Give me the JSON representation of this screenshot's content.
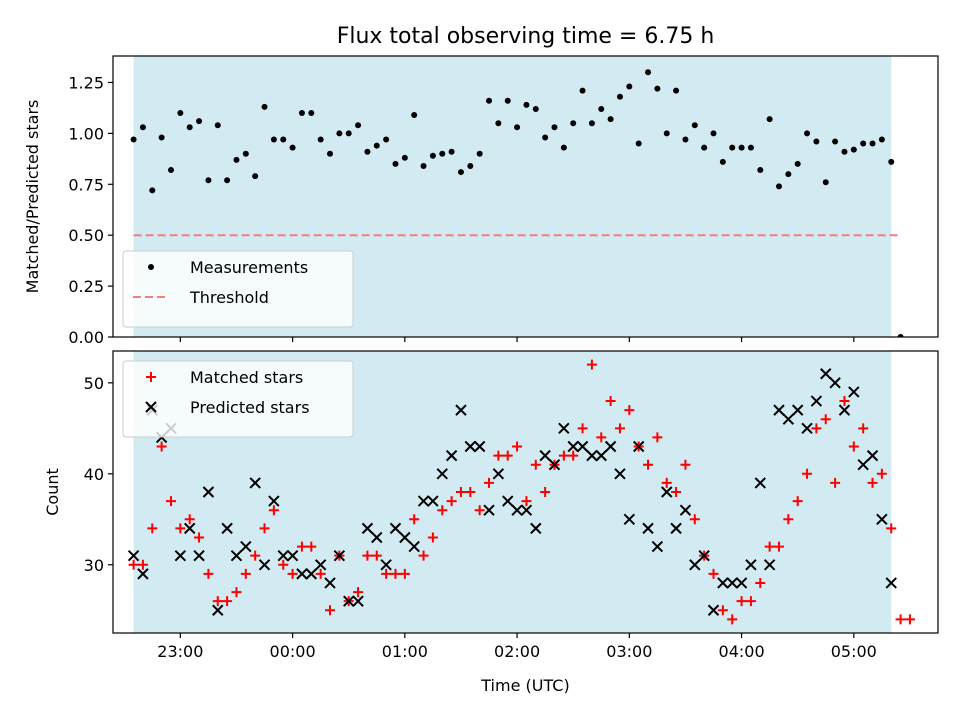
{
  "chart_data": [
    {
      "type": "scatter",
      "title": "Flux total observing time = 6.75 h",
      "ylabel": "Matched/Predicted stars",
      "xlabel": "",
      "xlim": [
        "22:24",
        "05:45"
      ],
      "ylim": [
        0,
        1.38
      ],
      "yticks": [
        "0.00",
        "0.25",
        "0.50",
        "0.75",
        "1.00",
        "1.25"
      ],
      "xticks": [
        "23:00",
        "00:00",
        "01:00",
        "02:00",
        "03:00",
        "04:00",
        "05:00"
      ],
      "x_tick_labels_visible": false,
      "shaded_span": {
        "start": "22:35",
        "end": "05:20",
        "color": "#add8e6"
      },
      "legend_location": "lower-left",
      "series": [
        {
          "name": "Measurements",
          "marker": "dot",
          "color": "#000000",
          "points": [
            [
              "22:35",
              0.97
            ],
            [
              "22:40",
              1.03
            ],
            [
              "22:45",
              0.72
            ],
            [
              "22:50",
              0.98
            ],
            [
              "22:55",
              0.82
            ],
            [
              "23:00",
              1.1
            ],
            [
              "23:05",
              1.03
            ],
            [
              "23:10",
              1.06
            ],
            [
              "23:15",
              0.77
            ],
            [
              "23:20",
              1.04
            ],
            [
              "23:25",
              0.77
            ],
            [
              "23:30",
              0.87
            ],
            [
              "23:35",
              0.9
            ],
            [
              "23:40",
              0.79
            ],
            [
              "23:45",
              1.13
            ],
            [
              "23:50",
              0.97
            ],
            [
              "23:55",
              0.97
            ],
            [
              "00:00",
              0.93
            ],
            [
              "00:05",
              1.1
            ],
            [
              "00:10",
              1.1
            ],
            [
              "00:15",
              0.97
            ],
            [
              "00:20",
              0.9
            ],
            [
              "00:25",
              1.0
            ],
            [
              "00:30",
              1.0
            ],
            [
              "00:35",
              1.04
            ],
            [
              "00:40",
              0.91
            ],
            [
              "00:45",
              0.94
            ],
            [
              "00:50",
              0.97
            ],
            [
              "00:55",
              0.85
            ],
            [
              "01:00",
              0.88
            ],
            [
              "01:05",
              1.09
            ],
            [
              "01:10",
              0.84
            ],
            [
              "01:15",
              0.89
            ],
            [
              "01:20",
              0.9
            ],
            [
              "01:25",
              0.91
            ],
            [
              "01:30",
              0.81
            ],
            [
              "01:35",
              0.84
            ],
            [
              "01:40",
              0.9
            ],
            [
              "01:45",
              1.16
            ],
            [
              "01:50",
              1.05
            ],
            [
              "01:55",
              1.16
            ],
            [
              "02:00",
              1.03
            ],
            [
              "02:05",
              1.14
            ],
            [
              "02:10",
              1.12
            ],
            [
              "02:15",
              0.98
            ],
            [
              "02:20",
              1.03
            ],
            [
              "02:25",
              0.93
            ],
            [
              "02:30",
              1.05
            ],
            [
              "02:35",
              1.21
            ],
            [
              "02:40",
              1.05
            ],
            [
              "02:45",
              1.12
            ],
            [
              "02:50",
              1.07
            ],
            [
              "02:55",
              1.18
            ],
            [
              "03:00",
              1.23
            ],
            [
              "03:05",
              0.95
            ],
            [
              "03:10",
              1.3
            ],
            [
              "03:15",
              1.22
            ],
            [
              "03:20",
              1.0
            ],
            [
              "03:25",
              1.21
            ],
            [
              "03:30",
              0.97
            ],
            [
              "03:35",
              1.04
            ],
            [
              "03:40",
              0.93
            ],
            [
              "03:45",
              1.0
            ],
            [
              "03:50",
              0.86
            ],
            [
              "03:55",
              0.93
            ],
            [
              "04:00",
              0.93
            ],
            [
              "04:05",
              0.93
            ],
            [
              "04:10",
              0.82
            ],
            [
              "04:15",
              1.07
            ],
            [
              "04:20",
              0.74
            ],
            [
              "04:25",
              0.8
            ],
            [
              "04:30",
              0.85
            ],
            [
              "04:35",
              1.0
            ],
            [
              "04:40",
              0.96
            ],
            [
              "04:45",
              0.76
            ],
            [
              "04:50",
              0.96
            ],
            [
              "04:55",
              0.91
            ],
            [
              "05:00",
              0.92
            ],
            [
              "05:05",
              0.95
            ],
            [
              "05:10",
              0.95
            ],
            [
              "05:15",
              0.97
            ],
            [
              "05:20",
              0.86
            ],
            [
              "05:25",
              0.0
            ]
          ]
        },
        {
          "name": "Threshold",
          "marker": "dashed-line",
          "color": "#f08080",
          "points": [
            [
              "22:35",
              0.5
            ],
            [
              "05:25",
              0.5
            ]
          ]
        }
      ]
    },
    {
      "type": "scatter",
      "title": "",
      "ylabel": "Count",
      "xlabel": "Time (UTC)",
      "xlim": [
        "22:24",
        "05:45"
      ],
      "ylim": [
        22.5,
        53.5
      ],
      "yticks": [
        "30",
        "40",
        "50"
      ],
      "xticks": [
        "23:00",
        "00:00",
        "01:00",
        "02:00",
        "03:00",
        "04:00",
        "05:00"
      ],
      "shaded_span": {
        "start": "22:35",
        "end": "05:20",
        "color": "#add8e6"
      },
      "legend_location": "upper-left",
      "series": [
        {
          "name": "Matched stars",
          "marker": "plus",
          "color": "#ff0000",
          "points": [
            [
              "22:35",
              30
            ],
            [
              "22:40",
              30
            ],
            [
              "22:45",
              34
            ],
            [
              "22:50",
              43
            ],
            [
              "22:55",
              37
            ],
            [
              "23:00",
              34
            ],
            [
              "23:05",
              35
            ],
            [
              "23:10",
              33
            ],
            [
              "23:15",
              29
            ],
            [
              "23:20",
              26
            ],
            [
              "23:25",
              26
            ],
            [
              "23:30",
              27
            ],
            [
              "23:35",
              29
            ],
            [
              "23:40",
              31
            ],
            [
              "23:45",
              34
            ],
            [
              "23:50",
              36
            ],
            [
              "23:55",
              30
            ],
            [
              "00:00",
              29
            ],
            [
              "00:05",
              32
            ],
            [
              "00:10",
              32
            ],
            [
              "00:15",
              29
            ],
            [
              "00:20",
              25
            ],
            [
              "00:25",
              31
            ],
            [
              "00:30",
              26
            ],
            [
              "00:35",
              27
            ],
            [
              "00:40",
              31
            ],
            [
              "00:45",
              31
            ],
            [
              "00:50",
              29
            ],
            [
              "00:55",
              29
            ],
            [
              "01:00",
              29
            ],
            [
              "01:05",
              35
            ],
            [
              "01:10",
              31
            ],
            [
              "01:15",
              33
            ],
            [
              "01:20",
              36
            ],
            [
              "01:25",
              37
            ],
            [
              "01:30",
              38
            ],
            [
              "01:35",
              38
            ],
            [
              "01:40",
              36
            ],
            [
              "01:45",
              39
            ],
            [
              "01:50",
              42
            ],
            [
              "01:55",
              42
            ],
            [
              "02:00",
              43
            ],
            [
              "02:05",
              37
            ],
            [
              "02:10",
              41
            ],
            [
              "02:15",
              38
            ],
            [
              "02:20",
              41
            ],
            [
              "02:25",
              42
            ],
            [
              "02:30",
              42
            ],
            [
              "02:35",
              45
            ],
            [
              "02:40",
              52
            ],
            [
              "02:45",
              44
            ],
            [
              "02:50",
              48
            ],
            [
              "02:55",
              45
            ],
            [
              "03:00",
              47
            ],
            [
              "03:05",
              43
            ],
            [
              "03:10",
              41
            ],
            [
              "03:15",
              44
            ],
            [
              "03:20",
              39
            ],
            [
              "03:25",
              38
            ],
            [
              "03:30",
              41
            ],
            [
              "03:35",
              35
            ],
            [
              "03:40",
              31
            ],
            [
              "03:45",
              29
            ],
            [
              "03:50",
              25
            ],
            [
              "03:55",
              24
            ],
            [
              "04:00",
              26
            ],
            [
              "04:05",
              26
            ],
            [
              "04:10",
              28
            ],
            [
              "04:15",
              32
            ],
            [
              "04:20",
              32
            ],
            [
              "04:25",
              35
            ],
            [
              "04:30",
              37
            ],
            [
              "04:35",
              40
            ],
            [
              "04:40",
              45
            ],
            [
              "04:45",
              46
            ],
            [
              "04:50",
              39
            ],
            [
              "04:55",
              48
            ],
            [
              "05:00",
              43
            ],
            [
              "05:05",
              45
            ],
            [
              "05:10",
              39
            ],
            [
              "05:15",
              40
            ],
            [
              "05:20",
              34
            ],
            [
              "05:25",
              24
            ],
            [
              "05:30",
              24
            ]
          ]
        },
        {
          "name": "Predicted stars",
          "marker": "x",
          "color": "#000000",
          "points": [
            [
              "22:35",
              31
            ],
            [
              "22:40",
              29
            ],
            [
              "22:45",
              47
            ],
            [
              "22:50",
              44
            ],
            [
              "22:55",
              45
            ],
            [
              "23:00",
              31
            ],
            [
              "23:05",
              34
            ],
            [
              "23:10",
              31
            ],
            [
              "23:15",
              38
            ],
            [
              "23:20",
              25
            ],
            [
              "23:25",
              34
            ],
            [
              "23:30",
              31
            ],
            [
              "23:35",
              32
            ],
            [
              "23:40",
              39
            ],
            [
              "23:45",
              30
            ],
            [
              "23:50",
              37
            ],
            [
              "23:55",
              31
            ],
            [
              "00:00",
              31
            ],
            [
              "00:05",
              29
            ],
            [
              "00:10",
              29
            ],
            [
              "00:15",
              30
            ],
            [
              "00:20",
              28
            ],
            [
              "00:25",
              31
            ],
            [
              "00:30",
              26
            ],
            [
              "00:35",
              26
            ],
            [
              "00:40",
              34
            ],
            [
              "00:45",
              33
            ],
            [
              "00:50",
              30
            ],
            [
              "00:55",
              34
            ],
            [
              "01:00",
              33
            ],
            [
              "01:05",
              32
            ],
            [
              "01:10",
              37
            ],
            [
              "01:15",
              37
            ],
            [
              "01:20",
              40
            ],
            [
              "01:25",
              42
            ],
            [
              "01:30",
              47
            ],
            [
              "01:35",
              43
            ],
            [
              "01:40",
              43
            ],
            [
              "01:45",
              36
            ],
            [
              "01:50",
              40
            ],
            [
              "01:55",
              37
            ],
            [
              "02:00",
              36
            ],
            [
              "02:05",
              36
            ],
            [
              "02:10",
              34
            ],
            [
              "02:15",
              42
            ],
            [
              "02:20",
              41
            ],
            [
              "02:25",
              45
            ],
            [
              "02:30",
              43
            ],
            [
              "02:35",
              43
            ],
            [
              "02:40",
              42
            ],
            [
              "02:45",
              42
            ],
            [
              "02:50",
              43
            ],
            [
              "02:55",
              40
            ],
            [
              "03:00",
              35
            ],
            [
              "03:05",
              43
            ],
            [
              "03:10",
              34
            ],
            [
              "03:15",
              32
            ],
            [
              "03:20",
              38
            ],
            [
              "03:25",
              34
            ],
            [
              "03:30",
              36
            ],
            [
              "03:35",
              30
            ],
            [
              "03:40",
              31
            ],
            [
              "03:45",
              25
            ],
            [
              "03:50",
              28
            ],
            [
              "03:55",
              28
            ],
            [
              "04:00",
              28
            ],
            [
              "04:05",
              30
            ],
            [
              "04:10",
              39
            ],
            [
              "04:15",
              30
            ],
            [
              "04:20",
              47
            ],
            [
              "04:25",
              46
            ],
            [
              "04:30",
              47
            ],
            [
              "04:35",
              45
            ],
            [
              "04:40",
              48
            ],
            [
              "04:45",
              51
            ],
            [
              "04:50",
              50
            ],
            [
              "04:55",
              47
            ],
            [
              "05:00",
              49
            ],
            [
              "05:05",
              41
            ],
            [
              "05:10",
              42
            ],
            [
              "05:15",
              35
            ],
            [
              "05:20",
              28
            ]
          ]
        }
      ]
    }
  ]
}
